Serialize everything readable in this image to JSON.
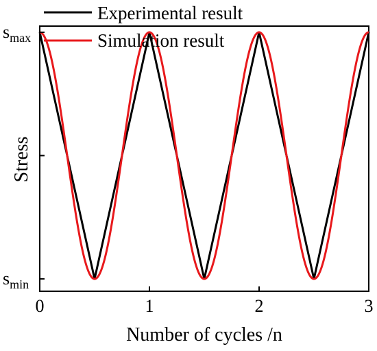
{
  "chart_data": {
    "type": "line",
    "xlabel": "Number of cycles /n",
    "ylabel": "Stress",
    "xlim": [
      0,
      3
    ],
    "ylim": [
      -1.1,
      1.05
    ],
    "x_ticks": [
      "0",
      "1",
      "2",
      "3"
    ],
    "y_levels": [
      {
        "base": "s",
        "sub": "max",
        "value": 1
      },
      {
        "base": "s",
        "sub": "min",
        "value": -1
      }
    ],
    "grid": false,
    "legend_position": "top-left",
    "series": [
      {
        "name": "Experimental result",
        "color": "#000000",
        "shape": "triangle",
        "x": [
          0,
          0.5,
          1,
          1.5,
          2,
          2.5,
          3
        ],
        "y": [
          1,
          -1,
          1,
          -1,
          1,
          -1,
          1
        ]
      },
      {
        "name": "Simulation result",
        "color": "#e8191c",
        "shape": "cosine",
        "x": [
          0,
          0.5,
          1,
          1.5,
          2,
          2.5,
          3
        ],
        "y": [
          1,
          -1,
          1,
          -1,
          1,
          -1,
          1
        ]
      }
    ]
  }
}
